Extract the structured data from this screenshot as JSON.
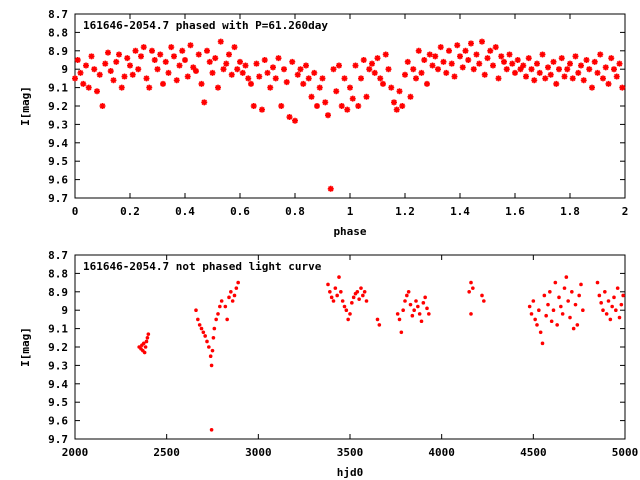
{
  "chart_data": [
    {
      "type": "scatter",
      "title": "161646-2054.7 phased with P=61.260day",
      "xlabel": "phase",
      "ylabel": "I[mag]",
      "xlim": [
        0,
        2
      ],
      "ylim": [
        9.7,
        8.7
      ],
      "y_inverted": true,
      "grid": false,
      "marker_color": "#ff0000",
      "marker": "star",
      "x_ticks": [
        0,
        0.2,
        0.4,
        0.6,
        0.8,
        1,
        1.2,
        1.4,
        1.6,
        1.8,
        2
      ],
      "x_tick_labels": [
        "0",
        "0.2",
        "0.4",
        "0.6",
        "0.8",
        "1",
        "1.2",
        "1.4",
        "1.6",
        "1.8",
        "2"
      ],
      "y_ticks": [
        8.7,
        8.8,
        8.9,
        9,
        9.1,
        9.2,
        9.3,
        9.4,
        9.5,
        9.6,
        9.7
      ],
      "y_tick_labels": [
        "8.7",
        "8.8",
        "8.9",
        "9",
        "9.1",
        "9.2",
        "9.3",
        "9.4",
        "9.5",
        "9.6",
        "9.7"
      ],
      "points": [
        [
          0.0,
          9.05
        ],
        [
          0.01,
          8.95
        ],
        [
          0.02,
          9.02
        ],
        [
          0.03,
          9.08
        ],
        [
          0.04,
          8.98
        ],
        [
          0.05,
          9.1
        ],
        [
          0.06,
          8.93
        ],
        [
          0.07,
          9.0
        ],
        [
          0.08,
          9.12
        ],
        [
          0.09,
          9.03
        ],
        [
          0.1,
          9.2
        ],
        [
          0.11,
          8.97
        ],
        [
          0.12,
          8.91
        ],
        [
          0.13,
          9.01
        ],
        [
          0.14,
          9.06
        ],
        [
          0.15,
          8.96
        ],
        [
          0.16,
          8.92
        ],
        [
          0.17,
          9.1
        ],
        [
          0.18,
          9.04
        ],
        [
          0.19,
          8.94
        ],
        [
          0.2,
          8.98
        ],
        [
          0.21,
          9.03
        ],
        [
          0.22,
          8.9
        ],
        [
          0.23,
          9.0
        ],
        [
          0.24,
          8.93
        ],
        [
          0.25,
          8.88
        ],
        [
          0.26,
          9.05
        ],
        [
          0.27,
          9.1
        ],
        [
          0.28,
          8.9
        ],
        [
          0.29,
          8.95
        ],
        [
          0.3,
          9.0
        ],
        [
          0.31,
          8.92
        ],
        [
          0.32,
          9.08
        ],
        [
          0.33,
          8.96
        ],
        [
          0.34,
          9.02
        ],
        [
          0.35,
          8.88
        ],
        [
          0.36,
          8.93
        ],
        [
          0.37,
          9.06
        ],
        [
          0.38,
          8.98
        ],
        [
          0.39,
          8.9
        ],
        [
          0.4,
          8.95
        ],
        [
          0.41,
          9.04
        ],
        [
          0.42,
          8.87
        ],
        [
          0.43,
          8.99
        ],
        [
          0.44,
          9.01
        ],
        [
          0.45,
          8.92
        ],
        [
          0.46,
          9.08
        ],
        [
          0.47,
          9.18
        ],
        [
          0.48,
          8.9
        ],
        [
          0.49,
          8.96
        ],
        [
          0.5,
          9.02
        ],
        [
          0.51,
          8.94
        ],
        [
          0.52,
          9.1
        ],
        [
          0.53,
          8.85
        ],
        [
          0.54,
          9.0
        ],
        [
          0.55,
          8.97
        ],
        [
          0.56,
          8.92
        ],
        [
          0.57,
          9.03
        ],
        [
          0.58,
          8.88
        ],
        [
          0.59,
          9.0
        ],
        [
          0.6,
          8.96
        ],
        [
          0.61,
          9.02
        ],
        [
          0.62,
          8.98
        ],
        [
          0.63,
          9.05
        ],
        [
          0.64,
          9.08
        ],
        [
          0.65,
          9.2
        ],
        [
          0.66,
          8.97
        ],
        [
          0.67,
          9.04
        ],
        [
          0.68,
          9.22
        ],
        [
          0.69,
          8.95
        ],
        [
          0.7,
          9.02
        ],
        [
          0.71,
          9.1
        ],
        [
          0.72,
          8.99
        ],
        [
          0.73,
          9.05
        ],
        [
          0.74,
          8.94
        ],
        [
          0.75,
          9.2
        ],
        [
          0.76,
          9.0
        ],
        [
          0.77,
          9.07
        ],
        [
          0.78,
          9.26
        ],
        [
          0.79,
          8.96
        ],
        [
          0.8,
          9.28
        ],
        [
          0.81,
          9.03
        ],
        [
          0.82,
          9.0
        ],
        [
          0.83,
          9.08
        ],
        [
          0.84,
          8.98
        ],
        [
          0.85,
          9.05
        ],
        [
          0.86,
          9.15
        ],
        [
          0.87,
          9.02
        ],
        [
          0.88,
          9.2
        ],
        [
          0.89,
          9.1
        ],
        [
          0.9,
          9.05
        ],
        [
          0.91,
          9.18
        ],
        [
          0.92,
          9.25
        ],
        [
          0.93,
          9.65
        ],
        [
          0.94,
          9.0
        ],
        [
          0.95,
          9.12
        ],
        [
          0.96,
          8.98
        ],
        [
          0.97,
          9.2
        ],
        [
          0.98,
          9.05
        ],
        [
          0.99,
          9.22
        ],
        [
          1.0,
          9.1
        ],
        [
          1.01,
          9.16
        ],
        [
          1.02,
          8.98
        ],
        [
          1.03,
          9.2
        ],
        [
          1.04,
          9.05
        ],
        [
          1.05,
          8.95
        ],
        [
          1.06,
          9.15
        ],
        [
          1.07,
          9.0
        ],
        [
          1.08,
          8.97
        ],
        [
          1.09,
          9.02
        ],
        [
          1.1,
          8.94
        ],
        [
          1.11,
          9.05
        ],
        [
          1.12,
          9.08
        ],
        [
          1.13,
          8.92
        ],
        [
          1.14,
          9.0
        ],
        [
          1.15,
          9.1
        ],
        [
          1.16,
          9.18
        ],
        [
          1.17,
          9.22
        ],
        [
          1.18,
          9.12
        ],
        [
          1.19,
          9.2
        ],
        [
          1.2,
          9.03
        ],
        [
          1.21,
          8.96
        ],
        [
          1.22,
          9.15
        ],
        [
          1.23,
          9.0
        ],
        [
          1.24,
          9.05
        ],
        [
          1.25,
          8.9
        ],
        [
          1.26,
          9.02
        ],
        [
          1.27,
          8.95
        ],
        [
          1.28,
          9.08
        ],
        [
          1.29,
          8.92
        ],
        [
          1.3,
          8.98
        ],
        [
          1.31,
          8.93
        ],
        [
          1.32,
          9.0
        ],
        [
          1.33,
          8.88
        ],
        [
          1.34,
          8.96
        ],
        [
          1.35,
          9.02
        ],
        [
          1.36,
          8.9
        ],
        [
          1.37,
          8.97
        ],
        [
          1.38,
          9.04
        ],
        [
          1.39,
          8.87
        ],
        [
          1.4,
          8.93
        ],
        [
          1.41,
          8.99
        ],
        [
          1.42,
          8.9
        ],
        [
          1.43,
          8.95
        ],
        [
          1.44,
          8.86
        ],
        [
          1.45,
          9.0
        ],
        [
          1.46,
          8.92
        ],
        [
          1.47,
          8.97
        ],
        [
          1.48,
          8.85
        ],
        [
          1.49,
          9.03
        ],
        [
          1.5,
          8.94
        ],
        [
          1.51,
          8.9
        ],
        [
          1.52,
          8.98
        ],
        [
          1.53,
          8.88
        ],
        [
          1.54,
          9.05
        ],
        [
          1.55,
          8.93
        ],
        [
          1.56,
          8.96
        ],
        [
          1.57,
          9.0
        ],
        [
          1.58,
          8.92
        ],
        [
          1.59,
          8.97
        ],
        [
          1.6,
          9.02
        ],
        [
          1.61,
          8.95
        ],
        [
          1.62,
          9.0
        ],
        [
          1.63,
          8.98
        ],
        [
          1.64,
          9.04
        ],
        [
          1.65,
          8.94
        ],
        [
          1.66,
          9.0
        ],
        [
          1.67,
          9.06
        ],
        [
          1.68,
          8.97
        ],
        [
          1.69,
          9.02
        ],
        [
          1.7,
          8.92
        ],
        [
          1.71,
          9.05
        ],
        [
          1.72,
          8.99
        ],
        [
          1.73,
          9.03
        ],
        [
          1.74,
          8.96
        ],
        [
          1.75,
          9.08
        ],
        [
          1.76,
          9.0
        ],
        [
          1.77,
          8.94
        ],
        [
          1.78,
          9.04
        ],
        [
          1.79,
          9.0
        ],
        [
          1.8,
          8.97
        ],
        [
          1.81,
          9.05
        ],
        [
          1.82,
          8.93
        ],
        [
          1.83,
          9.02
        ],
        [
          1.84,
          8.98
        ],
        [
          1.85,
          9.06
        ],
        [
          1.86,
          8.95
        ],
        [
          1.87,
          9.0
        ],
        [
          1.88,
          9.1
        ],
        [
          1.89,
          8.96
        ],
        [
          1.9,
          9.02
        ],
        [
          1.91,
          8.92
        ],
        [
          1.92,
          9.05
        ],
        [
          1.93,
          8.99
        ],
        [
          1.94,
          9.08
        ],
        [
          1.95,
          8.94
        ],
        [
          1.96,
          9.0
        ],
        [
          1.97,
          9.04
        ],
        [
          1.98,
          8.97
        ],
        [
          1.99,
          9.1
        ]
      ]
    },
    {
      "type": "scatter",
      "title": "161646-2054.7 not phased light curve",
      "xlabel": "hjd0",
      "ylabel": "I[mag]",
      "xlim": [
        2000,
        5000
      ],
      "ylim": [
        9.7,
        8.7
      ],
      "y_inverted": true,
      "grid": false,
      "marker_color": "#ff0000",
      "marker": "dot",
      "x_ticks": [
        2000,
        2500,
        3000,
        3500,
        4000,
        4500,
        5000
      ],
      "x_tick_labels": [
        "2000",
        "2500",
        "3000",
        "3500",
        "4000",
        "4500",
        "5000"
      ],
      "y_ticks": [
        8.7,
        8.8,
        8.9,
        9,
        9.1,
        9.2,
        9.3,
        9.4,
        9.5,
        9.6,
        9.7
      ],
      "y_tick_labels": [
        "8.7",
        "8.8",
        "8.9",
        "9",
        "9.1",
        "9.2",
        "9.3",
        "9.4",
        "9.5",
        "9.6",
        "9.7"
      ],
      "points": [
        [
          2350,
          9.2
        ],
        [
          2360,
          9.21
        ],
        [
          2365,
          9.19
        ],
        [
          2370,
          9.22
        ],
        [
          2375,
          9.18
        ],
        [
          2380,
          9.23
        ],
        [
          2385,
          9.2
        ],
        [
          2390,
          9.17
        ],
        [
          2395,
          9.15
        ],
        [
          2400,
          9.13
        ],
        [
          2660,
          9.0
        ],
        [
          2670,
          9.05
        ],
        [
          2680,
          9.08
        ],
        [
          2690,
          9.1
        ],
        [
          2700,
          9.12
        ],
        [
          2710,
          9.14
        ],
        [
          2720,
          9.17
        ],
        [
          2730,
          9.2
        ],
        [
          2740,
          9.25
        ],
        [
          2745,
          9.3
        ],
        [
          2750,
          9.22
        ],
        [
          2755,
          9.15
        ],
        [
          2745,
          9.65
        ],
        [
          2760,
          9.1
        ],
        [
          2770,
          9.05
        ],
        [
          2780,
          9.02
        ],
        [
          2790,
          8.98
        ],
        [
          2800,
          8.95
        ],
        [
          2820,
          8.98
        ],
        [
          2830,
          9.05
        ],
        [
          2840,
          8.93
        ],
        [
          2850,
          8.9
        ],
        [
          2860,
          8.95
        ],
        [
          2870,
          8.92
        ],
        [
          2880,
          8.88
        ],
        [
          2890,
          8.85
        ],
        [
          3380,
          8.86
        ],
        [
          3390,
          8.9
        ],
        [
          3400,
          8.93
        ],
        [
          3410,
          8.95
        ],
        [
          3420,
          8.88
        ],
        [
          3430,
          8.92
        ],
        [
          3440,
          8.82
        ],
        [
          3450,
          8.9
        ],
        [
          3460,
          8.95
        ],
        [
          3470,
          8.98
        ],
        [
          3480,
          9.0
        ],
        [
          3490,
          9.05
        ],
        [
          3500,
          9.02
        ],
        [
          3510,
          8.96
        ],
        [
          3520,
          8.93
        ],
        [
          3530,
          8.91
        ],
        [
          3540,
          8.9
        ],
        [
          3550,
          8.94
        ],
        [
          3560,
          8.88
        ],
        [
          3570,
          8.92
        ],
        [
          3580,
          8.9
        ],
        [
          3590,
          8.95
        ],
        [
          3650,
          9.05
        ],
        [
          3660,
          9.08
        ],
        [
          3760,
          9.02
        ],
        [
          3770,
          9.05
        ],
        [
          3780,
          9.12
        ],
        [
          3790,
          9.0
        ],
        [
          3800,
          8.95
        ],
        [
          3810,
          8.92
        ],
        [
          3820,
          8.9
        ],
        [
          3830,
          8.97
        ],
        [
          3840,
          9.03
        ],
        [
          3850,
          9.0
        ],
        [
          3860,
          8.95
        ],
        [
          3870,
          8.98
        ],
        [
          3880,
          9.02
        ],
        [
          3890,
          9.06
        ],
        [
          3900,
          8.96
        ],
        [
          3910,
          8.93
        ],
        [
          3920,
          8.99
        ],
        [
          3930,
          9.02
        ],
        [
          4150,
          8.9
        ],
        [
          4160,
          8.85
        ],
        [
          4170,
          8.88
        ],
        [
          4160,
          9.02
        ],
        [
          4220,
          8.92
        ],
        [
          4230,
          8.95
        ],
        [
          4480,
          8.98
        ],
        [
          4490,
          9.02
        ],
        [
          4500,
          8.95
        ],
        [
          4510,
          9.05
        ],
        [
          4520,
          9.08
        ],
        [
          4530,
          9.0
        ],
        [
          4540,
          9.12
        ],
        [
          4550,
          9.18
        ],
        [
          4560,
          8.92
        ],
        [
          4570,
          9.03
        ],
        [
          4580,
          8.97
        ],
        [
          4590,
          8.9
        ],
        [
          4600,
          9.06
        ],
        [
          4610,
          9.0
        ],
        [
          4620,
          8.85
        ],
        [
          4630,
          9.08
        ],
        [
          4640,
          8.93
        ],
        [
          4650,
          8.98
        ],
        [
          4660,
          9.02
        ],
        [
          4670,
          8.88
        ],
        [
          4680,
          8.82
        ],
        [
          4690,
          8.95
        ],
        [
          4700,
          9.04
        ],
        [
          4710,
          8.9
        ],
        [
          4720,
          9.1
        ],
        [
          4730,
          8.97
        ],
        [
          4740,
          9.08
        ],
        [
          4750,
          8.92
        ],
        [
          4760,
          8.86
        ],
        [
          4770,
          9.0
        ],
        [
          4850,
          8.85
        ],
        [
          4860,
          8.92
        ],
        [
          4870,
          8.96
        ],
        [
          4880,
          9.0
        ],
        [
          4890,
          8.9
        ],
        [
          4900,
          9.02
        ],
        [
          4910,
          8.95
        ],
        [
          4920,
          9.05
        ],
        [
          4930,
          8.98
        ],
        [
          4940,
          8.93
        ],
        [
          4950,
          9.0
        ],
        [
          4960,
          8.88
        ],
        [
          4970,
          9.04
        ],
        [
          4980,
          8.97
        ],
        [
          4990,
          8.92
        ]
      ]
    }
  ]
}
